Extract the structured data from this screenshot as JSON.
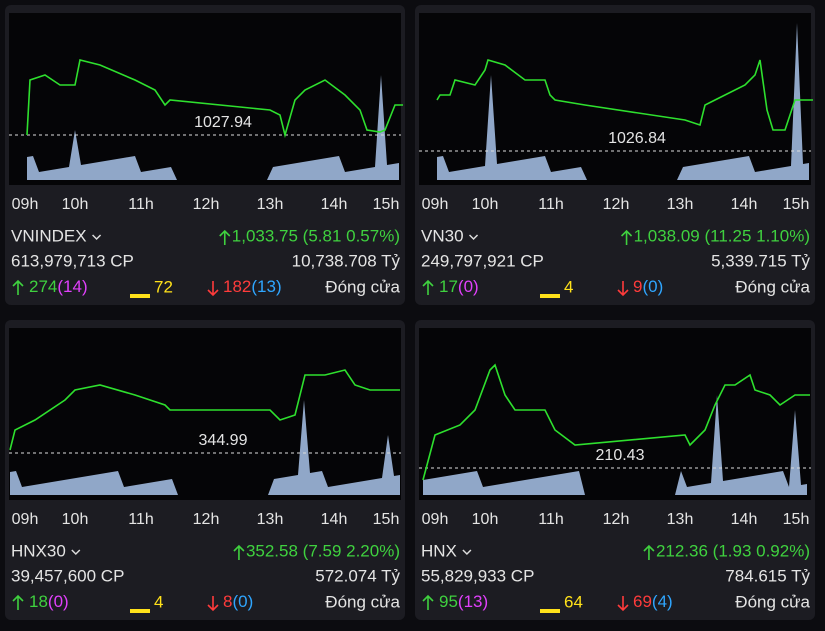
{
  "times": [
    "09h",
    "10h",
    "11h",
    "12h",
    "13h",
    "14h",
    "15h"
  ],
  "panels": [
    {
      "name": "VNINDEX",
      "change": "1,033.75 (5.81 0.57%)",
      "volume": "613,979,713 CP",
      "value": "10,738.708 Tỷ",
      "ref": "1027.94",
      "up": "274",
      "ceil": "(14)",
      "flat": "72",
      "down": "182",
      "floor": "(13)",
      "status": "Đóng cửa"
    },
    {
      "name": "VN30",
      "change": "1,038.09 (11.25 1.10%)",
      "volume": "249,797,921 CP",
      "value": "5,339.715 Tỷ",
      "ref": "1026.84",
      "up": "17",
      "ceil": "(0)",
      "flat": "4",
      "down": "9",
      "floor": "(0)",
      "status": "Đóng cửa"
    },
    {
      "name": "HNX30",
      "change": "352.58 (7.59 2.20%)",
      "volume": "39,457,600 CP",
      "value": "572.074 Tỷ",
      "ref": "344.99",
      "up": "18",
      "ceil": "(0)",
      "flat": "4",
      "down": "8",
      "floor": "(0)",
      "status": "Đóng cửa"
    },
    {
      "name": "HNX",
      "change": "212.36 (1.93 0.92%)",
      "volume": "55,829,933 CP",
      "value": "784.615 Tỷ",
      "ref": "210.43",
      "up": "95",
      "ceil": "(13)",
      "flat": "64",
      "down": "69",
      "floor": "(4)",
      "status": "Đóng cửa"
    }
  ]
}
